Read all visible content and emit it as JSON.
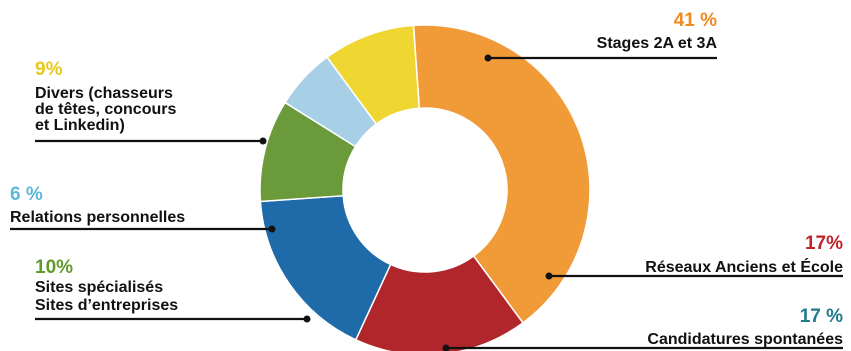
{
  "chart_data": {
    "type": "pie",
    "donut": true,
    "title": "",
    "slices": [
      {
        "value": 41,
        "pct_label": "41 %",
        "label_lines": [
          "Stages 2A et 3A"
        ],
        "color": "#f09a38",
        "pct_color": "#f08a1c"
      },
      {
        "value": 17,
        "pct_label": "17%",
        "label_lines": [
          "Réseaux Anciens et École"
        ],
        "color": "#b0262a",
        "pct_color": "#c0222a"
      },
      {
        "value": 17,
        "pct_label": "17 %",
        "label_lines": [
          "Candidatures spontanées"
        ],
        "color": "#1f6aa8",
        "pct_color": "#1e7a8c"
      },
      {
        "value": 10,
        "pct_label": "10%",
        "label_lines": [
          "Sites spécialisés",
          "Sites d’entreprises"
        ],
        "color": "#6b9a3a",
        "pct_color": "#5f9a2a"
      },
      {
        "value": 6,
        "pct_label": "6 %",
        "label_lines": [
          "Relations personnelles"
        ],
        "color": "#a7cfe6",
        "pct_color": "#5bb8d8"
      },
      {
        "value": 9,
        "pct_label": "9%",
        "label_lines": [
          "Divers (chasseurs",
          "de têtes, concours",
          "et Linkedin)"
        ],
        "color": "#efd631",
        "pct_color": "#e8c81c"
      }
    ],
    "legend": "none"
  }
}
